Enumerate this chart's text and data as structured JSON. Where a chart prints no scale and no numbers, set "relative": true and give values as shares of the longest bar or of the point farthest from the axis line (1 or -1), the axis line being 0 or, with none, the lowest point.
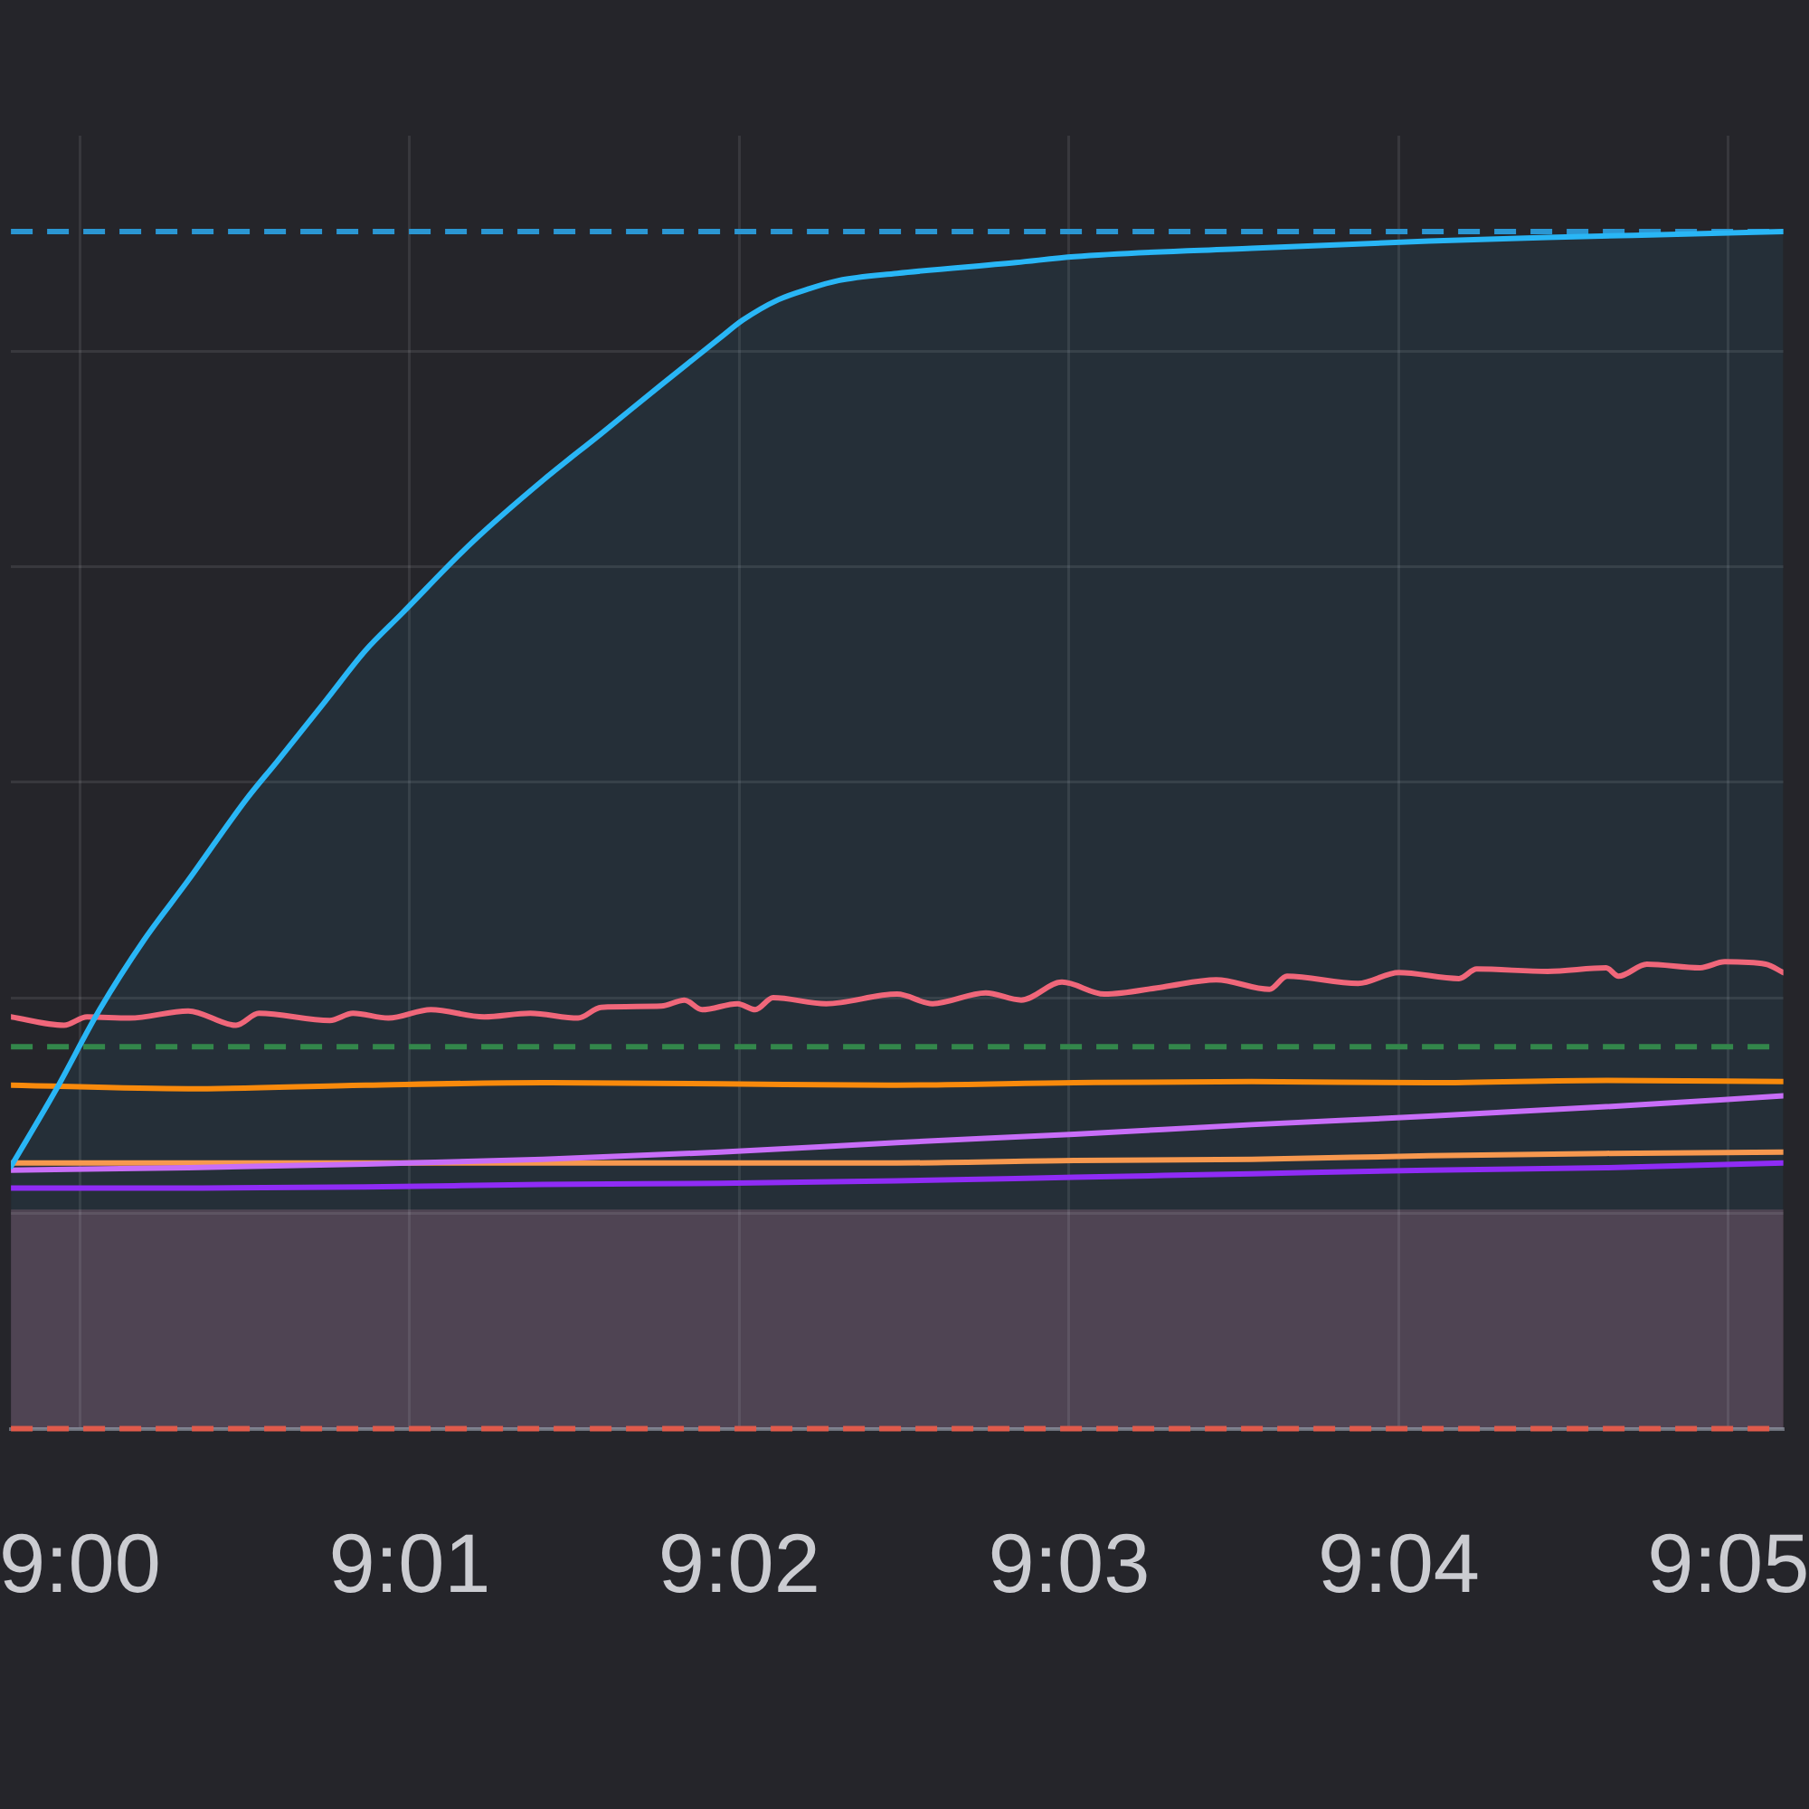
{
  "chart_data": {
    "type": "line",
    "relative": true,
    "grid": true,
    "marker": "none",
    "tick_labels": "x",
    "x": [
      8.99651,
      9.00547,
      9.01443,
      9.02339,
      9.03235,
      9.04131,
      9.05027,
      9.05923,
      9.06819,
      9.07715,
      9.08611
    ],
    "xlim": [
      8.99651,
      9.08611
    ],
    "xticks": [
      {
        "value": 9,
        "label": "9:00"
      },
      {
        "value": 9.01667,
        "label": "9:01"
      },
      {
        "value": 9.03333,
        "label": "9:02"
      },
      {
        "value": 9.05,
        "label": "9:03"
      },
      {
        "value": 9.06667,
        "label": "9:04"
      },
      {
        "value": 9.08333,
        "label": "9:05"
      }
    ],
    "series": [
      {
        "type": "area",
        "color": "#29b6f6",
        "x": [
          8.99651,
          8.99875,
          9.00099,
          9.00323,
          9.00547,
          9.00842,
          9.00995,
          9.01237,
          9.01443,
          9.01622,
          9.0198,
          9.02339,
          9.02634,
          9.02939,
          9.03235,
          9.03351,
          9.0353,
          9.03683,
          9.03835,
          9.04131,
          9.04731,
          9.05027,
          9.05923,
          9.06819,
          9.07419,
          9.08163,
          9.08611
        ],
        "values": [
          0.219,
          0.282,
          0.35,
          0.408,
          0.458,
          0.526,
          0.557,
          0.607,
          0.65,
          0.68,
          0.74,
          0.792,
          0.831,
          0.872,
          0.911,
          0.926,
          0.943,
          0.952,
          0.959,
          0.965,
          0.974,
          0.979,
          0.986,
          0.992,
          0.995,
          0.998,
          1.0
        ]
      },
      {
        "type": "line",
        "color": "#f0677a",
        "x": [
          8.99651,
          8.99919,
          9.00036,
          9.00251,
          9.00547,
          9.00789,
          9.00905,
          9.01263,
          9.0138,
          9.01559,
          9.01774,
          9.02043,
          9.02276,
          9.02518,
          9.02634,
          9.02939,
          9.03056,
          9.03145,
          9.03324,
          9.03414,
          9.03504,
          9.03772,
          9.04131,
          9.0431,
          9.04579,
          9.04758,
          9.04964,
          9.05179,
          9.05475,
          9.05744,
          9.06013,
          9.06102,
          9.06461,
          9.06667,
          9.06971,
          9.07061,
          9.07419,
          9.07715,
          9.07778,
          9.07921,
          9.0819,
          9.08315,
          9.08522,
          9.08611
        ],
        "values": [
          0.344,
          0.337,
          0.344,
          0.343,
          0.349,
          0.337,
          0.347,
          0.341,
          0.347,
          0.343,
          0.35,
          0.344,
          0.347,
          0.343,
          0.352,
          0.353,
          0.358,
          0.35,
          0.355,
          0.35,
          0.36,
          0.355,
          0.363,
          0.355,
          0.364,
          0.358,
          0.373,
          0.363,
          0.369,
          0.375,
          0.367,
          0.378,
          0.372,
          0.381,
          0.376,
          0.384,
          0.382,
          0.385,
          0.378,
          0.388,
          0.385,
          0.39,
          0.388,
          0.381
        ]
      },
      {
        "type": "line",
        "color": "#f98a0c",
        "values": [
          0.287,
          0.284,
          0.287,
          0.289,
          0.288,
          0.287,
          0.289,
          0.29,
          0.289,
          0.291,
          0.29
        ]
      },
      {
        "type": "line",
        "color": "#c86ef8",
        "values": [
          0.216,
          0.218,
          0.221,
          0.225,
          0.231,
          0.239,
          0.246,
          0.254,
          0.261,
          0.269,
          0.278
        ]
      },
      {
        "type": "line",
        "color": "#f7984f",
        "values": [
          0.222,
          0.222,
          0.222,
          0.222,
          0.222,
          0.222,
          0.224,
          0.225,
          0.228,
          0.23,
          0.231
        ]
      },
      {
        "type": "line",
        "color": "#8f2cf5",
        "values": [
          0.201,
          0.201,
          0.202,
          0.204,
          0.205,
          0.207,
          0.21,
          0.213,
          0.216,
          0.218,
          0.222
        ]
      }
    ],
    "ref_lines": [
      {
        "axis": "y",
        "value": 1.0,
        "color": "#2b96d2",
        "line_style": "dashed"
      },
      {
        "axis": "y",
        "value": 0.319,
        "color": "#33874b",
        "line_style": "dashed"
      },
      {
        "axis": "y",
        "value": 0,
        "color": "#e05a4b",
        "line_style": "dashed"
      }
    ],
    "bands": [
      {
        "axis": "y",
        "from": 0,
        "to": 0.183,
        "color": "#523c48"
      }
    ]
  }
}
